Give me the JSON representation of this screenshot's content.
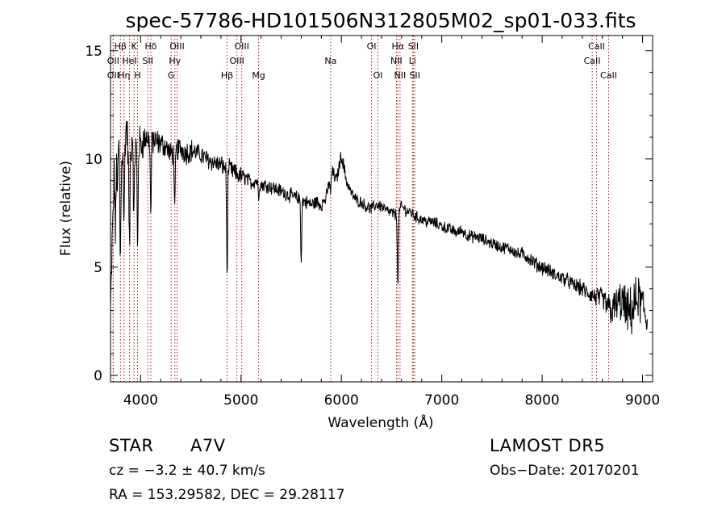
{
  "chart_data": {
    "type": "line",
    "title": "spec-57786-HD101506N312805M02_sp01-033.fits",
    "xlabel": "Wavelength (Å)",
    "ylabel": "Flux (relative)",
    "xlim": [
      3700,
      9100
    ],
    "ylim": [
      -0.3,
      15.7
    ],
    "xticks": [
      4000,
      5000,
      6000,
      7000,
      8000,
      9000
    ],
    "yticks": [
      0,
      5,
      10,
      15
    ],
    "grid": false,
    "series": [
      {
        "x": [
          3700,
          3720,
          3740,
          3760,
          3780,
          3800,
          3820,
          3840,
          3860,
          3880,
          3900,
          3920,
          3940,
          3960,
          3980,
          4000,
          4050,
          4100,
          4150,
          4200,
          4250,
          4300,
          4350,
          4400,
          4450,
          4500,
          4550,
          4600,
          4650,
          4700,
          4750,
          4800,
          4850,
          4900,
          4950,
          5000,
          5050,
          5100,
          5150,
          5200,
          5250,
          5300,
          5350,
          5400,
          5450,
          5500,
          5550,
          5600,
          5650,
          5700,
          5750,
          5800,
          5850,
          5900,
          5950,
          6000,
          6050,
          6100,
          6150,
          6200,
          6250,
          6300,
          6350,
          6400,
          6450,
          6500,
          6550,
          6600,
          6650,
          6700,
          6750,
          6800,
          6850,
          6900,
          6950,
          7000,
          7050,
          7100,
          7150,
          7200,
          7250,
          7300,
          7350,
          7400,
          7450,
          7500,
          7550,
          7600,
          7650,
          7700,
          7750,
          7800,
          7850,
          7900,
          7950,
          8000,
          8050,
          8100,
          8150,
          8200,
          8250,
          8300,
          8350,
          8400,
          8450,
          8500,
          8550,
          8600,
          8650,
          8700,
          8750,
          8800,
          8850,
          8900,
          8950,
          9000,
          9050
        ],
        "y": [
          3.0,
          6.5,
          9.5,
          10.5,
          10.8,
          9.0,
          10.5,
          11.0,
          11.5,
          10.0,
          10.5,
          11.2,
          10.8,
          10.5,
          10.8,
          10.6,
          11.0,
          10.9,
          10.8,
          10.7,
          10.6,
          10.2,
          10.4,
          10.5,
          10.3,
          10.4,
          10.3,
          10.2,
          10.0,
          9.9,
          9.8,
          9.7,
          9.6,
          9.5,
          9.3,
          9.2,
          9.1,
          8.9,
          9.0,
          8.8,
          8.8,
          8.7,
          8.6,
          8.5,
          8.4,
          8.3,
          8.2,
          8.1,
          8.0,
          7.9,
          8.0,
          7.9,
          8.2,
          9.5,
          9.0,
          10.2,
          9.0,
          8.4,
          8.1,
          8.0,
          7.8,
          7.7,
          7.9,
          7.8,
          7.6,
          7.5,
          7.4,
          7.8,
          7.6,
          7.5,
          7.3,
          7.2,
          7.1,
          7.1,
          7.0,
          6.9,
          6.8,
          6.7,
          6.6,
          6.7,
          6.5,
          6.4,
          6.4,
          6.3,
          6.2,
          6.1,
          6.0,
          5.9,
          5.9,
          5.8,
          5.6,
          5.6,
          5.5,
          5.3,
          5.1,
          5.0,
          4.9,
          4.7,
          4.6,
          4.5,
          4.4,
          4.2,
          4.1,
          4.0,
          3.8,
          3.7,
          3.6,
          3.5,
          3.2,
          3.0,
          3.3,
          3.4,
          2.8,
          3.0,
          3.6,
          3.2,
          2.5
        ],
        "noise": [
          0.6,
          1.2,
          1.2,
          1.1,
          1.1,
          1.0,
          1.0,
          1.0,
          1.0,
          0.9,
          0.9,
          0.9,
          0.9,
          0.8,
          0.8,
          0.8,
          0.6,
          0.6,
          0.6,
          0.5,
          0.5,
          0.5,
          0.5,
          0.5,
          0.5,
          0.5,
          0.4,
          0.4,
          0.4,
          0.4,
          0.4,
          0.4,
          0.4,
          0.4,
          0.4,
          0.4,
          0.3,
          0.3,
          0.3,
          0.3,
          0.3,
          0.3,
          0.3,
          0.3,
          0.3,
          0.3,
          0.3,
          0.3,
          0.3,
          0.3,
          0.3,
          0.3,
          0.3,
          0.3,
          0.3,
          0.3,
          0.3,
          0.25,
          0.25,
          0.25,
          0.25,
          0.25,
          0.25,
          0.25,
          0.25,
          0.25,
          0.25,
          0.25,
          0.25,
          0.25,
          0.25,
          0.25,
          0.25,
          0.25,
          0.25,
          0.25,
          0.25,
          0.25,
          0.25,
          0.25,
          0.25,
          0.25,
          0.25,
          0.25,
          0.25,
          0.25,
          0.25,
          0.25,
          0.25,
          0.25,
          0.25,
          0.3,
          0.3,
          0.3,
          0.3,
          0.3,
          0.3,
          0.3,
          0.3,
          0.3,
          0.3,
          0.3,
          0.35,
          0.35,
          0.35,
          0.4,
          0.45,
          0.5,
          0.6,
          0.7,
          0.8,
          0.9,
          1.0,
          1.0,
          1.0,
          1.0,
          1.0
        ]
      }
    ],
    "absorption_features": [
      {
        "x": 3750,
        "depth": 3.5
      },
      {
        "x": 3770,
        "depth": 2.0
      },
      {
        "x": 3798,
        "depth": 4.0
      },
      {
        "x": 3835,
        "depth": 4.0
      },
      {
        "x": 3889,
        "depth": 4.5
      },
      {
        "x": 3933,
        "depth": 4.0
      },
      {
        "x": 3970,
        "depth": 5.0
      },
      {
        "x": 4101,
        "depth": 3.5
      },
      {
        "x": 4340,
        "depth": 3.0
      },
      {
        "x": 4861,
        "depth": 5.0
      },
      {
        "x": 5175,
        "depth": 0.6
      },
      {
        "x": 5600,
        "depth": 2.8
      },
      {
        "x": 5893,
        "depth": 1.0
      },
      {
        "x": 6563,
        "depth": 3.5
      }
    ],
    "line_marks": [
      {
        "label": "Hβ",
        "x": 3799,
        "row": 0
      },
      {
        "label": "K",
        "x": 3934,
        "row": 0
      },
      {
        "label": "Hδ",
        "x": 4102,
        "row": 0
      },
      {
        "label": "OII",
        "x": 3727,
        "row": 1
      },
      {
        "label": "HeI",
        "x": 3889,
        "row": 1
      },
      {
        "label": "SII",
        "x": 4072,
        "row": 1
      },
      {
        "label": "OII",
        "x": 3727,
        "row": 2
      },
      {
        "label": "Hη",
        "x": 3835,
        "row": 2
      },
      {
        "label": "H",
        "x": 3969,
        "row": 2
      },
      {
        "label": "OIII",
        "x": 4363,
        "row": 0
      },
      {
        "label": "Hγ",
        "x": 4341,
        "row": 1
      },
      {
        "label": "G",
        "x": 4304,
        "row": 2
      },
      {
        "label": "OIII",
        "x": 5007,
        "row": 0
      },
      {
        "label": "OIII",
        "x": 4959,
        "row": 1
      },
      {
        "label": "Hβ",
        "x": 4861,
        "row": 2
      },
      {
        "label": "Mg",
        "x": 5175,
        "row": 2
      },
      {
        "label": "Na",
        "x": 5893,
        "row": 1
      },
      {
        "label": "OI",
        "x": 6300,
        "row": 0
      },
      {
        "label": "OI",
        "x": 6364,
        "row": 2
      },
      {
        "label": "Hα",
        "x": 6563,
        "row": 0
      },
      {
        "label": "SII",
        "x": 6717,
        "row": 0
      },
      {
        "label": "NII",
        "x": 6548,
        "row": 1
      },
      {
        "label": "Li",
        "x": 6708,
        "row": 1
      },
      {
        "label": "NII",
        "x": 6584,
        "row": 2
      },
      {
        "label": "SII",
        "x": 6731,
        "row": 2
      },
      {
        "label": "CaII",
        "x": 8542,
        "row": 0
      },
      {
        "label": "CaII",
        "x": 8498,
        "row": 1
      },
      {
        "label": "CaII",
        "x": 8662,
        "row": 2
      }
    ],
    "line_color": "#000000",
    "mark_color": "#b01818"
  },
  "info": {
    "object_type": "STAR",
    "spectral_class": "A7V",
    "survey": "LAMOST DR5",
    "redshift": "cz = −3.2 ± 40.7 km/s",
    "obs_date": "Obs−Date: 20170201",
    "coords": "RA = 153.29582, DEC =  29.28117"
  }
}
